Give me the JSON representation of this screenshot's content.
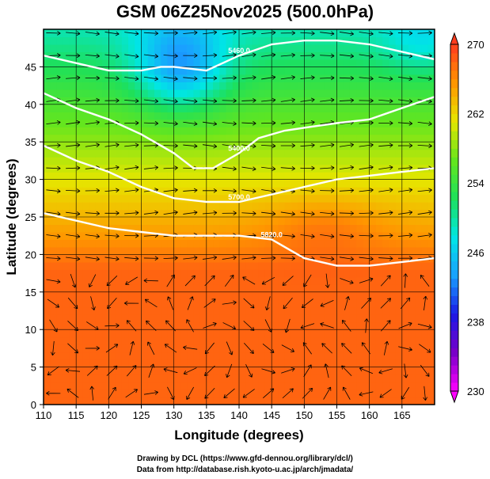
{
  "title": "GSM 06Z25Nov2025 (500.0hPa)",
  "credits": [
    "Drawing by DCL (https://www.gfd-dennou.org/library/dcl/)",
    "Data from http://database.rish.kyoto-u.ac.jp/arch/jmadata/"
  ],
  "chart_data": {
    "type": "heatmap",
    "title": "GSM 06Z25Nov2025 (500.0hPa)",
    "xlabel": "Longitude (degrees)",
    "ylabel": "Latitude  (degrees)",
    "xlim": [
      110,
      170
    ],
    "ylim": [
      0,
      50
    ],
    "x_ticks": [
      110,
      115,
      120,
      125,
      130,
      135,
      140,
      145,
      150,
      155,
      160,
      165
    ],
    "y_ticks": [
      0,
      5,
      10,
      15,
      20,
      25,
      30,
      35,
      40,
      45
    ],
    "grid": true,
    "colorbar": {
      "min": 230,
      "max": 270,
      "ticks": [
        230,
        238,
        246,
        254,
        262,
        270
      ],
      "colors": [
        "#ff00ff",
        "#7a00c8",
        "#1a1ae6",
        "#1aa0ff",
        "#00e6e6",
        "#1ee05a",
        "#64e61e",
        "#e6e600",
        "#ff9600",
        "#ff3c1e"
      ]
    },
    "contours": [
      {
        "label": "5400.0",
        "points": [
          [
            110,
            41.5
          ],
          [
            115,
            39.5
          ],
          [
            120,
            38
          ],
          [
            125,
            36
          ],
          [
            127,
            35
          ],
          [
            130,
            33.5
          ],
          [
            133,
            31.5
          ],
          [
            136,
            31.5
          ],
          [
            140,
            33.5
          ],
          [
            143,
            35.5
          ],
          [
            147,
            36.5
          ],
          [
            151,
            37
          ],
          [
            155,
            37.5
          ],
          [
            160,
            38
          ],
          [
            165,
            39.5
          ],
          [
            170,
            41
          ]
        ]
      },
      {
        "label": "5700.0",
        "points": [
          [
            110,
            34.5
          ],
          [
            115,
            32.5
          ],
          [
            120,
            31
          ],
          [
            125,
            29
          ],
          [
            130,
            27.5
          ],
          [
            135,
            27
          ],
          [
            140,
            27
          ],
          [
            145,
            28
          ],
          [
            150,
            29
          ],
          [
            155,
            30
          ],
          [
            160,
            30.5
          ],
          [
            165,
            31
          ],
          [
            170,
            31.5
          ]
        ]
      },
      {
        "label": "5820.0",
        "points": [
          [
            110,
            25.5
          ],
          [
            115,
            24.5
          ],
          [
            120,
            23.5
          ],
          [
            125,
            23
          ],
          [
            130,
            22.5
          ],
          [
            135,
            22.5
          ],
          [
            140,
            22.5
          ],
          [
            145,
            22
          ],
          [
            148,
            20.5
          ],
          [
            150,
            19.5
          ],
          [
            155,
            18.5
          ],
          [
            160,
            18.5
          ],
          [
            165,
            19
          ],
          [
            170,
            19.5
          ]
        ]
      },
      {
        "label": "5460.0",
        "points": [
          [
            110,
            46.5
          ],
          [
            115,
            45.5
          ],
          [
            120,
            44.5
          ],
          [
            125,
            44.5
          ],
          [
            128,
            45
          ],
          [
            130,
            45
          ],
          [
            135,
            44.5
          ],
          [
            140,
            46.5
          ],
          [
            145,
            48
          ],
          [
            150,
            48.5
          ],
          [
            155,
            48.5
          ],
          [
            160,
            48
          ],
          [
            165,
            47
          ],
          [
            170,
            46
          ]
        ]
      }
    ],
    "annotations": [
      "5400.0",
      "5460.0",
      "5700.0",
      "5820.0"
    ]
  }
}
